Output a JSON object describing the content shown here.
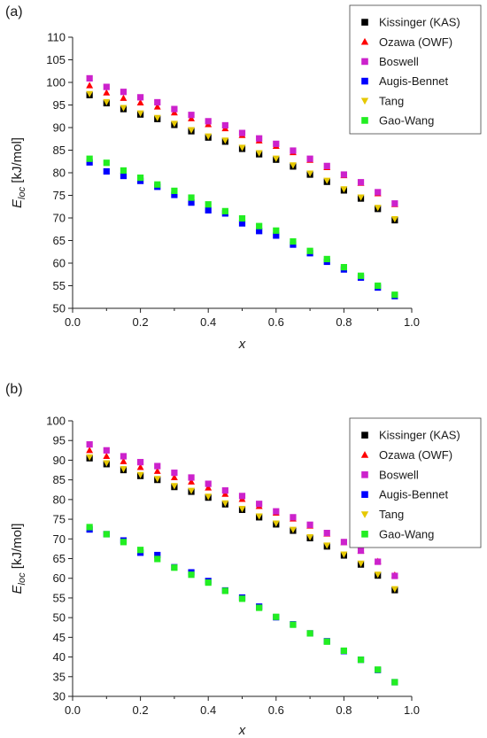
{
  "colors": {
    "kas": "#000000",
    "owf": "#ff0000",
    "boswell": "#cc22cc",
    "augis": "#0000ff",
    "tang": "#e6c800",
    "gao": "#22ee22"
  },
  "chart_data": [
    {
      "type": "scatter",
      "panel_label": "(a)",
      "xlabel": "x",
      "ylabel_main": "E",
      "ylabel_sub": "loc",
      "ylabel_unit": " [kJ/mol]",
      "xlim": [
        0.0,
        1.0
      ],
      "ylim": [
        50,
        110
      ],
      "xticks": [
        0.0,
        0.2,
        0.4,
        0.6,
        0.8,
        1.0
      ],
      "xtick_labels": [
        "0.0",
        "0.2",
        "0.4",
        "0.6",
        "0.8",
        "1.0"
      ],
      "yticks": [
        50,
        55,
        60,
        65,
        70,
        75,
        80,
        85,
        90,
        95,
        100,
        105,
        110
      ],
      "ytick_labels": [
        "50",
        "55",
        "60",
        "65",
        "70",
        "75",
        "80",
        "85",
        "90",
        "95",
        "100",
        "105",
        "110"
      ],
      "legend_position": "top-right",
      "x": [
        0.05,
        0.1,
        0.15,
        0.2,
        0.25,
        0.3,
        0.35,
        0.4,
        0.45,
        0.5,
        0.55,
        0.6,
        0.65,
        0.7,
        0.75,
        0.8,
        0.85,
        0.9,
        0.95
      ],
      "series": [
        {
          "name": "Kissinger (KAS)",
          "marker": "square",
          "color": "#000000",
          "values": [
            97.2,
            95.4,
            94.1,
            92.9,
            91.9,
            90.6,
            89.2,
            87.8,
            86.9,
            85.3,
            84.1,
            82.9,
            81.4,
            79.6,
            78.0,
            76.1,
            74.3,
            72.0,
            69.5
          ]
        },
        {
          "name": "Ozawa (OWF)",
          "marker": "triangle-up",
          "color": "#ff0000",
          "values": [
            99.3,
            97.7,
            96.5,
            95.5,
            94.6,
            93.3,
            92.0,
            90.7,
            89.8,
            88.3,
            87.1,
            85.9,
            84.5,
            82.8,
            81.2,
            79.4,
            77.7,
            75.4,
            73.0
          ]
        },
        {
          "name": "Boswell",
          "marker": "square",
          "color": "#cc22cc",
          "values": [
            100.9,
            99.0,
            97.9,
            96.7,
            95.6,
            94.1,
            92.8,
            91.4,
            90.5,
            88.8,
            87.6,
            86.4,
            84.9,
            83.1,
            81.5,
            79.6,
            77.9,
            75.7,
            73.2
          ]
        },
        {
          "name": "Augis-Bennet",
          "marker": "square",
          "color": "#0000ff",
          "values": [
            82.3,
            80.3,
            79.3,
            78.2,
            76.9,
            75.1,
            73.4,
            71.7,
            71.0,
            68.8,
            67.1,
            66.1,
            64.1,
            62.2,
            60.3,
            58.6,
            56.8,
            54.6,
            52.7
          ]
        },
        {
          "name": "Tang",
          "marker": "triangle-down",
          "color": "#e6c800",
          "values": [
            97.5,
            95.7,
            94.4,
            93.2,
            92.2,
            90.9,
            89.5,
            88.1,
            87.2,
            85.6,
            84.4,
            83.2,
            81.7,
            79.9,
            78.3,
            76.4,
            74.6,
            72.3,
            69.8
          ]
        },
        {
          "name": "Gao-Wang",
          "marker": "square",
          "color": "#22ee22",
          "values": [
            83.1,
            82.2,
            80.5,
            78.9,
            77.4,
            76.0,
            74.5,
            73.0,
            71.5,
            69.9,
            68.2,
            67.2,
            64.8,
            62.7,
            60.9,
            59.1,
            57.2,
            55.0,
            53.0
          ]
        }
      ]
    },
    {
      "type": "scatter",
      "panel_label": "(b)",
      "xlabel": "x",
      "ylabel_main": "E",
      "ylabel_sub": "loc",
      "ylabel_unit": " [kJ/mol]",
      "xlim": [
        0.0,
        1.0
      ],
      "ylim": [
        30,
        100
      ],
      "xticks": [
        0.0,
        0.2,
        0.4,
        0.6,
        0.8,
        1.0
      ],
      "xtick_labels": [
        "0.0",
        "0.2",
        "0.4",
        "0.6",
        "0.8",
        "1.0"
      ],
      "yticks": [
        30,
        35,
        40,
        45,
        50,
        55,
        60,
        65,
        70,
        75,
        80,
        85,
        90,
        95,
        100
      ],
      "ytick_labels": [
        "30",
        "35",
        "40",
        "45",
        "50",
        "55",
        "60",
        "65",
        "70",
        "75",
        "80",
        "85",
        "90",
        "95",
        "100"
      ],
      "legend_position": "top-right",
      "x": [
        0.05,
        0.1,
        0.15,
        0.2,
        0.25,
        0.3,
        0.35,
        0.4,
        0.45,
        0.5,
        0.55,
        0.6,
        0.65,
        0.7,
        0.75,
        0.8,
        0.85,
        0.9,
        0.95
      ],
      "series": [
        {
          "name": "Kissinger (KAS)",
          "marker": "square",
          "color": "#000000",
          "values": [
            90.5,
            89.0,
            87.5,
            86.0,
            85.0,
            83.2,
            82.0,
            80.5,
            78.8,
            77.4,
            75.5,
            73.7,
            72.1,
            70.2,
            68.1,
            65.8,
            63.5,
            60.7,
            57.0
          ]
        },
        {
          "name": "Ozawa (OWF)",
          "marker": "triangle-up",
          "color": "#ff0000",
          "values": [
            92.5,
            91.0,
            89.7,
            88.2,
            87.2,
            85.6,
            84.5,
            83.0,
            81.4,
            80.1,
            78.3,
            76.6,
            75.1,
            73.3,
            71.3,
            69.1,
            67.0,
            64.3,
            60.8
          ]
        },
        {
          "name": "Boswell",
          "marker": "square",
          "color": "#cc22cc",
          "values": [
            94.0,
            92.5,
            91.0,
            89.5,
            88.5,
            86.8,
            85.6,
            84.0,
            82.3,
            80.9,
            78.9,
            77.0,
            75.5,
            73.6,
            71.5,
            69.2,
            67.0,
            64.2,
            60.6
          ]
        },
        {
          "name": "Augis-Bennet",
          "marker": "square",
          "color": "#0000ff",
          "values": [
            72.4,
            71.2,
            69.6,
            66.5,
            65.9,
            62.8,
            61.5,
            59.3,
            56.9,
            55.1,
            52.8,
            50.1,
            48.3,
            46.0,
            44.0,
            41.5,
            39.3,
            36.7,
            33.6
          ]
        },
        {
          "name": "Tang",
          "marker": "triangle-down",
          "color": "#e6c800",
          "values": [
            90.8,
            89.3,
            87.8,
            86.3,
            85.3,
            83.5,
            82.3,
            80.8,
            79.1,
            77.7,
            75.8,
            74.0,
            72.4,
            70.5,
            68.4,
            66.1,
            63.8,
            61.0,
            57.3
          ]
        },
        {
          "name": "Gao-Wang",
          "marker": "square",
          "color": "#22ee22",
          "values": [
            73.0,
            71.2,
            69.2,
            67.2,
            64.9,
            62.7,
            60.9,
            58.9,
            56.8,
            54.8,
            52.5,
            50.2,
            48.2,
            46.0,
            43.9,
            41.6,
            39.3,
            36.8,
            33.6
          ]
        }
      ]
    }
  ]
}
